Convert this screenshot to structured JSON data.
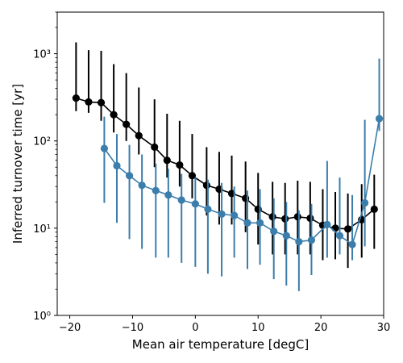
{
  "chart_data": {
    "type": "line",
    "title": "",
    "xlabel": "Mean air temperature [degC]",
    "ylabel": "Inferred turnover time [yr]",
    "xlim": [
      -22,
      30
    ],
    "ylim": [
      1,
      3000
    ],
    "yscale": "log",
    "grid": false,
    "x_ticks": [
      -20,
      -10,
      0,
      10,
      20,
      30
    ],
    "x_tick_labels": [
      "−20",
      "−10",
      "0",
      "10",
      "20",
      "30"
    ],
    "y_ticks": [
      1,
      10,
      100,
      1000
    ],
    "y_tick_labels": [
      "10⁰",
      "10¹",
      "10²",
      "10³"
    ],
    "series": [
      {
        "color": "#000000",
        "error_bars": true,
        "points": [
          {
            "x": -19.0,
            "y": 310,
            "lo": 220,
            "hi": 1350
          },
          {
            "x": -17.0,
            "y": 280,
            "lo": 210,
            "hi": 1100
          },
          {
            "x": -15.0,
            "y": 275,
            "lo": 170,
            "hi": 1080
          },
          {
            "x": -13.0,
            "y": 200,
            "lo": 125,
            "hi": 760
          },
          {
            "x": -11.0,
            "y": 155,
            "lo": 100,
            "hi": 600
          },
          {
            "x": -9.0,
            "y": 115,
            "lo": 70,
            "hi": 410
          },
          {
            "x": -6.5,
            "y": 85,
            "lo": 50,
            "hi": 300
          },
          {
            "x": -4.5,
            "y": 60,
            "lo": 38,
            "hi": 205
          },
          {
            "x": -2.5,
            "y": 53,
            "lo": 30,
            "hi": 170
          },
          {
            "x": -0.5,
            "y": 40,
            "lo": 22,
            "hi": 120
          },
          {
            "x": 1.8,
            "y": 31,
            "lo": 14,
            "hi": 85
          },
          {
            "x": 3.8,
            "y": 28,
            "lo": 11,
            "hi": 75
          },
          {
            "x": 5.8,
            "y": 25,
            "lo": 11,
            "hi": 68
          },
          {
            "x": 8.0,
            "y": 22,
            "lo": 9,
            "hi": 58
          },
          {
            "x": 10.0,
            "y": 16.5,
            "lo": 6.5,
            "hi": 43
          },
          {
            "x": 12.3,
            "y": 13.5,
            "lo": 5,
            "hi": 34
          },
          {
            "x": 14.3,
            "y": 12.8,
            "lo": 5,
            "hi": 33
          },
          {
            "x": 16.3,
            "y": 13.5,
            "lo": 5,
            "hi": 35
          },
          {
            "x": 18.3,
            "y": 13,
            "lo": 5,
            "hi": 34
          },
          {
            "x": 20.3,
            "y": 10.8,
            "lo": 4.3,
            "hi": 28
          },
          {
            "x": 22.3,
            "y": 10,
            "lo": 4.4,
            "hi": 26
          },
          {
            "x": 24.3,
            "y": 9.8,
            "lo": 3.5,
            "hi": 25
          },
          {
            "x": 26.5,
            "y": 12.5,
            "lo": 4.6,
            "hi": 32
          },
          {
            "x": 28.5,
            "y": 16.5,
            "lo": 5.8,
            "hi": 41
          }
        ]
      },
      {
        "color": "#3b7dab",
        "error_bars": true,
        "points": [
          {
            "x": -14.5,
            "y": 82,
            "lo": 19.5,
            "hi": 190
          },
          {
            "x": -12.5,
            "y": 52,
            "lo": 11.5,
            "hi": 120
          },
          {
            "x": -10.5,
            "y": 40,
            "lo": 7.5,
            "hi": 90
          },
          {
            "x": -8.5,
            "y": 31,
            "lo": 5.8,
            "hi": 70
          },
          {
            "x": -6.3,
            "y": 27,
            "lo": 4.6,
            "hi": 55
          },
          {
            "x": -4.3,
            "y": 24,
            "lo": 4.6,
            "hi": 48
          },
          {
            "x": -2.2,
            "y": 21,
            "lo": 4.0,
            "hi": 42
          },
          {
            "x": 0.0,
            "y": 19,
            "lo": 3.6,
            "hi": 38
          },
          {
            "x": 2.0,
            "y": 16.5,
            "lo": 3.0,
            "hi": 36
          },
          {
            "x": 4.2,
            "y": 14.5,
            "lo": 2.8,
            "hi": 33
          },
          {
            "x": 6.2,
            "y": 14,
            "lo": 4.6,
            "hi": 30
          },
          {
            "x": 8.3,
            "y": 11.5,
            "lo": 3.4,
            "hi": 27
          },
          {
            "x": 10.3,
            "y": 11.5,
            "lo": 3.8,
            "hi": 28
          },
          {
            "x": 12.5,
            "y": 9.2,
            "lo": 2.6,
            "hi": 22
          },
          {
            "x": 14.5,
            "y": 8.2,
            "lo": 2.2,
            "hi": 20
          },
          {
            "x": 16.5,
            "y": 7,
            "lo": 1.9,
            "hi": 16
          },
          {
            "x": 18.5,
            "y": 7.3,
            "lo": 2.9,
            "hi": 19
          },
          {
            "x": 21.0,
            "y": 11,
            "lo": 4.6,
            "hi": 59
          },
          {
            "x": 23.0,
            "y": 8.2,
            "lo": 5.0,
            "hi": 38
          },
          {
            "x": 25.0,
            "y": 6.5,
            "lo": 4.3,
            "hi": 24
          },
          {
            "x": 27.0,
            "y": 19.5,
            "lo": 6.2,
            "hi": 175
          },
          {
            "x": 29.3,
            "y": 180,
            "lo": 130,
            "hi": 880
          }
        ]
      }
    ]
  }
}
